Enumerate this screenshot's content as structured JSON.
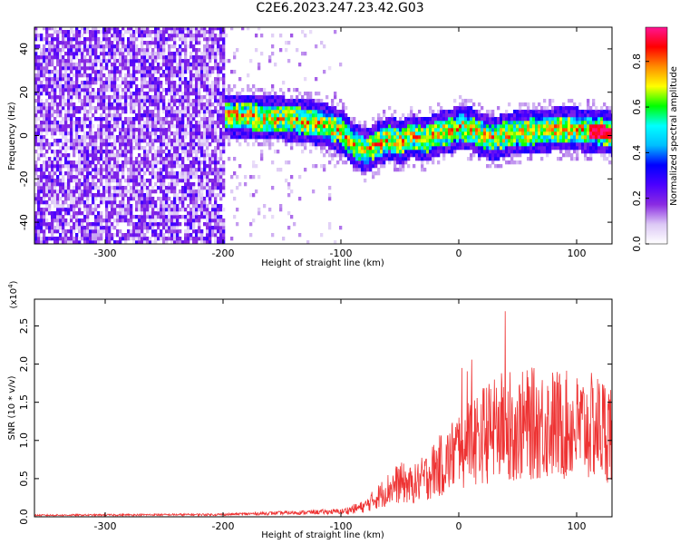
{
  "title": "C2E6.2023.247.23.42.G03",
  "chart_data": [
    {
      "type": "heatmap",
      "xlabel": "Height of straight line (km)",
      "ylabel": "Frequency (Hz)",
      "xlim": [
        -360,
        130
      ],
      "ylim": [
        -50,
        50
      ],
      "xticks": [
        -300,
        -200,
        -100,
        0,
        100
      ],
      "yticks": [
        -40,
        -20,
        0,
        20,
        40
      ],
      "colorbar": {
        "label": "Normalized spectral amplitude",
        "range": [
          0,
          0.95
        ],
        "ticks": [
          "0.0",
          "0.2",
          "0.4",
          "0.6",
          "0.8"
        ],
        "tick_values": [
          0.0,
          0.2,
          0.4,
          0.6,
          0.8
        ],
        "colormap": [
          "#ffffff",
          "#dcc8f5",
          "#8a2be2",
          "#4b00ff",
          "#0000ff",
          "#00bfff",
          "#00ffff",
          "#00ff00",
          "#ffff00",
          "#ff8c00",
          "#ff0000",
          "#ff1493"
        ]
      },
      "signal_centerline": {
        "x": [
          -210,
          -180,
          -150,
          -120,
          -100,
          -90,
          -80,
          -70,
          -60,
          -50,
          -40,
          -30,
          -20,
          -10,
          0,
          10,
          20,
          30,
          40,
          60,
          80,
          100,
          120,
          130
        ],
        "y": [
          9,
          8,
          7,
          5,
          1,
          -5,
          -8,
          -5,
          -2,
          -4,
          -1,
          -3,
          0,
          1,
          3,
          2,
          -1,
          -2,
          0,
          1,
          2,
          2,
          1,
          0
        ]
      }
    },
    {
      "type": "line",
      "xlabel": "Height of straight line (km)",
      "ylabel": "SNR (10 * v/v)",
      "y_multiplier": "(x10",
      "y_multiplier_exp": "4",
      "y_multiplier_close": ")",
      "xlim": [
        -360,
        130
      ],
      "ylim": [
        0,
        2.85
      ],
      "xticks": [
        -300,
        -200,
        -100,
        0,
        100
      ],
      "yticks": [
        0.0,
        0.5,
        1.0,
        1.5,
        2.0,
        2.5
      ],
      "ytick_labels": [
        "0.0",
        "0.5",
        "1.0",
        "1.5",
        "2.0",
        "2.5"
      ],
      "series_color": "#ee3333",
      "envelope": {
        "x": [
          -360,
          -200,
          -150,
          -100,
          -80,
          -60,
          -50,
          -40,
          -30,
          -20,
          -10,
          0,
          10,
          20,
          30,
          40,
          50,
          60,
          80,
          100,
          120,
          130
        ],
        "y": [
          0.02,
          0.03,
          0.05,
          0.07,
          0.15,
          0.4,
          0.5,
          0.45,
          0.55,
          0.7,
          0.8,
          1.0,
          1.1,
          1.2,
          1.25,
          1.35,
          1.3,
          1.35,
          1.35,
          1.3,
          1.3,
          1.25
        ]
      }
    }
  ]
}
